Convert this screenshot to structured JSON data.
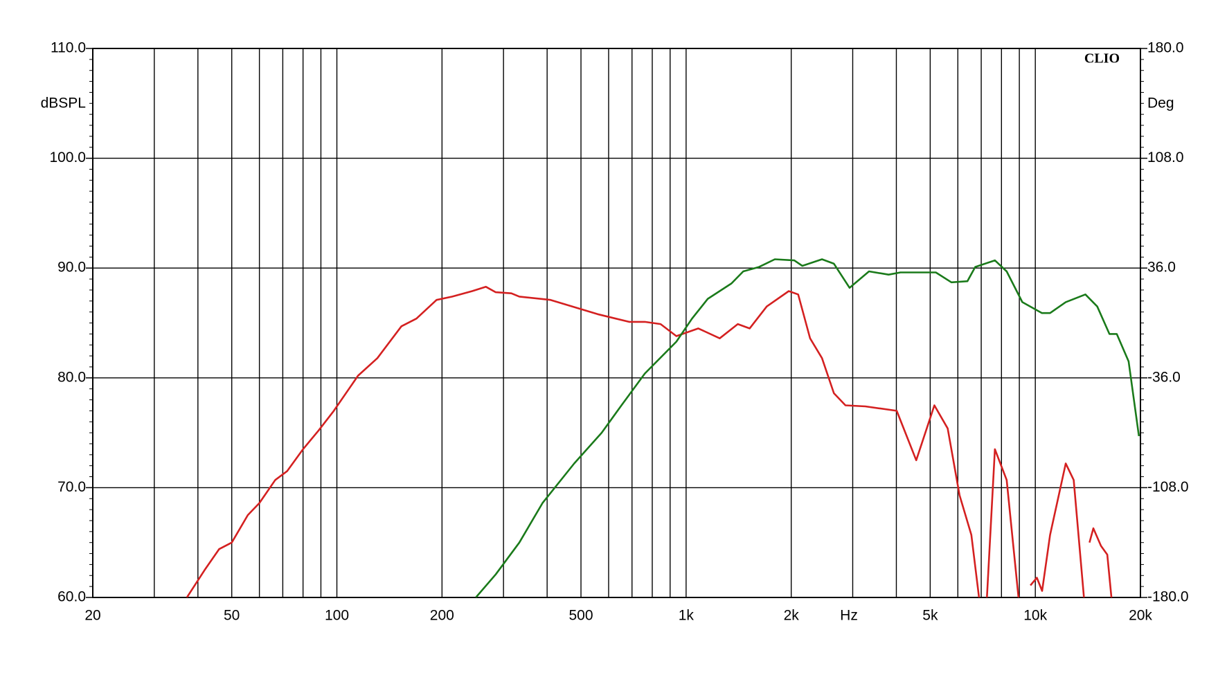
{
  "chart_data": {
    "type": "line",
    "brand": "CLIO",
    "ylabel": "dBSPL",
    "y2label": "Deg",
    "xlabel": "Hz",
    "xlog": true,
    "grid": true,
    "xlim": [
      20,
      20000
    ],
    "xticks": [
      20,
      50,
      100,
      200,
      500,
      {
        "value": 1000,
        "label": "1k"
      },
      {
        "value": 2000,
        "label": "2k"
      },
      {
        "value": 5000,
        "label": "5k"
      },
      {
        "value": 10000,
        "label": "10k"
      },
      {
        "value": 20000,
        "label": "20k"
      }
    ],
    "xgrid": [
      30,
      40,
      60,
      70,
      80,
      90,
      300,
      400,
      600,
      700,
      800,
      900,
      3000,
      4000,
      6000,
      7000,
      8000,
      9000
    ],
    "ylim": [
      60,
      110
    ],
    "yticks": [
      {
        "value": 60,
        "label": "60.0"
      },
      {
        "value": 70,
        "label": "70.0"
      },
      {
        "value": 80,
        "label": "80.0"
      },
      {
        "value": 90,
        "label": "90.0"
      },
      {
        "value": 100,
        "label": "100.0"
      },
      {
        "value": 110,
        "label": "110.0"
      }
    ],
    "y2lim": [
      -180,
      180
    ],
    "y2ticks": [
      {
        "value": -180,
        "label": "-180.0"
      },
      {
        "value": -108,
        "label": "-108.0"
      },
      {
        "value": -36,
        "label": "-36.0"
      },
      {
        "value": 36,
        "label": "36.0"
      },
      {
        "value": 108,
        "label": "108.0"
      },
      {
        "value": 180,
        "label": "180.0"
      }
    ],
    "series": [
      {
        "color": "#d42020",
        "x": [
          37.2,
          41.8,
          46,
          50,
          55.6,
          60,
          66.6,
          72,
          80,
          88.6,
          98,
          115,
          130.6,
          153,
          169,
          193,
          214,
          244,
          267,
          285,
          316,
          333,
          409,
          558,
          687,
          762,
          845,
          938,
          1084,
          1248,
          1406,
          1520,
          1702,
          1968,
          2094,
          2265,
          2450,
          2650,
          2860,
          3260,
          4010,
          4560,
          5140,
          5610,
          6070,
          6560,
          6900,
          7080,
          7270,
          7660,
          8280,
          8950,
          9300,
          9680,
          10100,
          10460,
          11020,
          12220,
          12880,
          13780,
          14000,
          14290,
          14660,
          15420,
          16070,
          16520
        ],
        "values": [
          60,
          62.5,
          64.4,
          65,
          67.5,
          68.6,
          70.7,
          71.5,
          73.5,
          75.2,
          77,
          80.2,
          81.8,
          84.7,
          85.4,
          87.1,
          87.4,
          87.9,
          88.3,
          87.8,
          87.7,
          87.4,
          87.1,
          85.8,
          85.1,
          85.1,
          84.9,
          83.8,
          84.5,
          83.6,
          84.9,
          84.5,
          86.5,
          87.9,
          87.6,
          83.6,
          81.8,
          78.6,
          77.5,
          77.4,
          77,
          72.5,
          77.5,
          75.4,
          69.3,
          65.7,
          60,
          null,
          60,
          73.5,
          70.7,
          60,
          null,
          61.1,
          61.8,
          60.6,
          65.7,
          72.2,
          70.7,
          60,
          null,
          65,
          66.3,
          64.7,
          63.9,
          60
        ]
      },
      {
        "color": "#1a7a1a",
        "x": [
          250,
          285,
          333,
          388,
          478,
          573,
          653,
          762,
          938,
          1040,
          1154,
          1349,
          1458,
          1618,
          1795,
          2040,
          2152,
          2450,
          2650,
          2938,
          3340,
          3800,
          4110,
          5190,
          5750,
          6390,
          6730,
          7660,
          8280,
          9180,
          10450,
          11020,
          12220,
          13910,
          15040,
          16300,
          17110,
          18500,
          19800
        ],
        "values": [
          60,
          62.1,
          65,
          68.6,
          72.2,
          75,
          77.5,
          80.4,
          83.3,
          85.4,
          87.2,
          88.6,
          89.7,
          90.1,
          90.8,
          90.7,
          90.2,
          90.8,
          90.4,
          88.2,
          89.7,
          89.4,
          89.6,
          89.6,
          88.7,
          88.8,
          90.1,
          90.7,
          89.7,
          86.9,
          85.9,
          85.9,
          86.9,
          87.6,
          86.5,
          84,
          84,
          81.5,
          74.7
        ]
      }
    ]
  }
}
